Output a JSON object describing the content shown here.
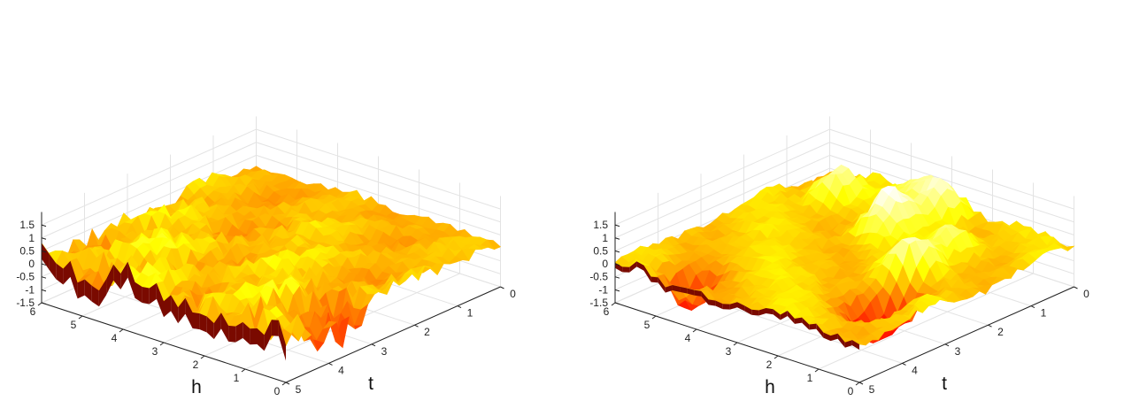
{
  "chart_data": [
    {
      "type": "surface",
      "colormap": "hot",
      "xlabel": "h",
      "ylabel": "t",
      "xlim": [
        0,
        6
      ],
      "ylim": [
        0,
        5
      ],
      "zlim": [
        -1.5,
        1.5
      ],
      "x_ticks": [
        "0",
        "1",
        "2",
        "3",
        "4",
        "5",
        "6"
      ],
      "y_ticks": [
        "0",
        "1",
        "2",
        "3",
        "4",
        "5"
      ],
      "z_ticks": [
        "-1.5",
        "-1",
        "-0.5",
        "0",
        "0.5",
        "1",
        "1.5"
      ],
      "grid": true,
      "surface_description": "noisy",
      "peaks": []
    },
    {
      "type": "surface",
      "colormap": "hot",
      "xlabel": "h",
      "ylabel": "t",
      "xlim": [
        0,
        6
      ],
      "ylim": [
        0,
        5
      ],
      "zlim": [
        -1.5,
        1.5
      ],
      "x_ticks": [
        "0",
        "1",
        "2",
        "3",
        "4",
        "5",
        "6"
      ],
      "y_ticks": [
        "0",
        "1",
        "2",
        "3",
        "4",
        "5"
      ],
      "z_ticks": [
        "-1.5",
        "-1",
        "-0.5",
        "0",
        "0.5",
        "1",
        "1.5"
      ],
      "grid": true,
      "surface_description": "smooth",
      "peaks": [
        {
          "h": 3.1,
          "t": 1.4,
          "z": 1.6
        },
        {
          "h": 2.8,
          "t": 0.4,
          "z": 1.4
        },
        {
          "h": 1.5,
          "t": 2.4,
          "z": 1.4
        },
        {
          "h": 1.6,
          "t": 1.3,
          "z": 1.1
        },
        {
          "h": 4.9,
          "t": 0.9,
          "z": 1.3
        },
        {
          "h": 3.5,
          "t": 0.2,
          "z": 0.9
        },
        {
          "h": 4.7,
          "t": 4.5,
          "z": -1.4
        },
        {
          "h": 1.1,
          "t": 2.9,
          "z": -1.4
        },
        {
          "h": 1.2,
          "t": 3.6,
          "z": -1.5
        }
      ]
    }
  ]
}
